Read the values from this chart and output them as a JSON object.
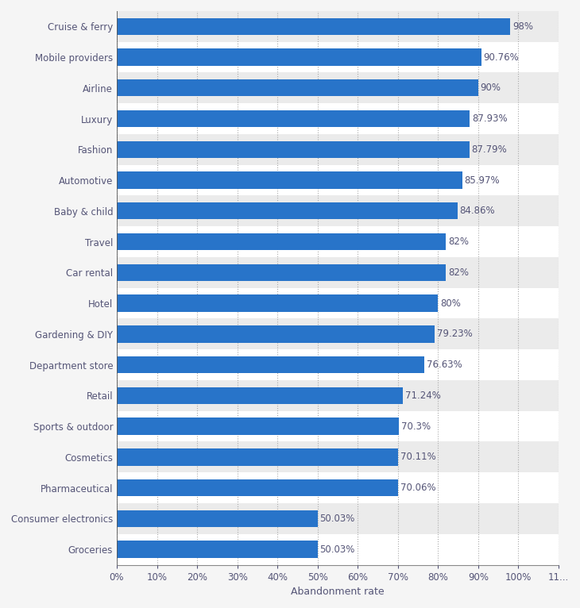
{
  "categories": [
    "Groceries",
    "Consumer electronics",
    "Pharmaceutical",
    "Cosmetics",
    "Sports & outdoor",
    "Retail",
    "Department store",
    "Gardening & DIY",
    "Hotel",
    "Car rental",
    "Travel",
    "Baby & child",
    "Automotive",
    "Fashion",
    "Luxury",
    "Airline",
    "Mobile providers",
    "Cruise & ferry"
  ],
  "values": [
    50.03,
    50.03,
    70.06,
    70.11,
    70.3,
    71.24,
    76.63,
    79.23,
    80,
    82,
    82,
    84.86,
    85.97,
    87.79,
    87.93,
    90,
    90.76,
    98
  ],
  "labels": [
    "50.03%",
    "50.03%",
    "70.06%",
    "70.11%",
    "70.3%",
    "71.24%",
    "76.63%",
    "79.23%",
    "80%",
    "82%",
    "82%",
    "84.86%",
    "85.97%",
    "87.79%",
    "87.93%",
    "90%",
    "90.76%",
    "98%"
  ],
  "bar_color": "#2874C9",
  "bar_height": 0.55,
  "xlabel": "Abandonment rate",
  "xlim": [
    0,
    110
  ],
  "xtick_values": [
    0,
    10,
    20,
    30,
    40,
    50,
    60,
    70,
    80,
    90,
    100,
    110
  ],
  "xtick_labels": [
    "0%",
    "10%",
    "20%",
    "30%",
    "40%",
    "50%",
    "60%",
    "70%",
    "80%",
    "90%",
    "100%",
    "11..."
  ],
  "grid_color": "#aaaaaa",
  "background_color": "#f5f5f5",
  "plot_bg_color": "#f5f5f5",
  "row_bg_even": "#ffffff",
  "row_bg_odd": "#ebebeb",
  "label_fontsize": 8.5,
  "tick_fontsize": 8.5,
  "xlabel_fontsize": 9,
  "label_color": "#555577",
  "value_label_color": "#555577"
}
